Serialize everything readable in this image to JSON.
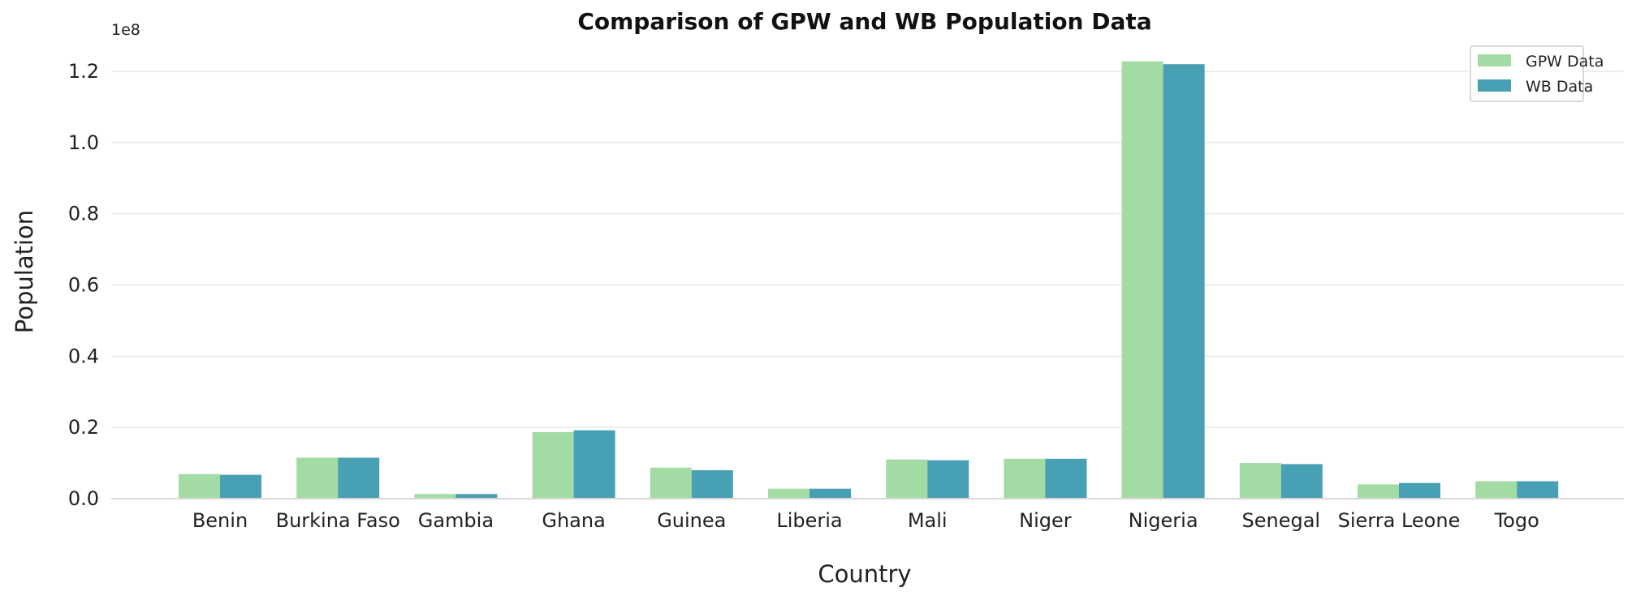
{
  "chart_data": {
    "type": "bar",
    "title": "Comparison of GPW and WB Population Data",
    "xlabel": "Country",
    "ylabel": "Population",
    "y_scale_label": "1e8",
    "y_scale": 100000000,
    "ylim": [
      0,
      1.3
    ],
    "yticks": [
      0.0,
      0.2,
      0.4,
      0.6,
      0.8,
      1.0,
      1.2
    ],
    "ytick_labels": [
      "0.0",
      "0.2",
      "0.4",
      "0.6",
      "0.8",
      "1.0",
      "1.2"
    ],
    "grid": true,
    "legend_position": "top-right",
    "categories": [
      "Benin",
      "Burkina Faso",
      "Gambia",
      "Ghana",
      "Guinea",
      "Liberia",
      "Mali",
      "Niger",
      "Nigeria",
      "Senegal",
      "Sierra Leone",
      "Togo"
    ],
    "series": [
      {
        "name": "GPW Data",
        "color": "#a3dba4",
        "values": [
          0.069,
          0.115,
          0.013,
          0.187,
          0.087,
          0.028,
          0.11,
          0.112,
          1.228,
          0.1,
          0.04,
          0.049
        ]
      },
      {
        "name": "WB Data",
        "color": "#47a0b4",
        "values": [
          0.067,
          0.115,
          0.013,
          0.192,
          0.08,
          0.028,
          0.108,
          0.112,
          1.22,
          0.097,
          0.044,
          0.049
        ]
      }
    ]
  }
}
